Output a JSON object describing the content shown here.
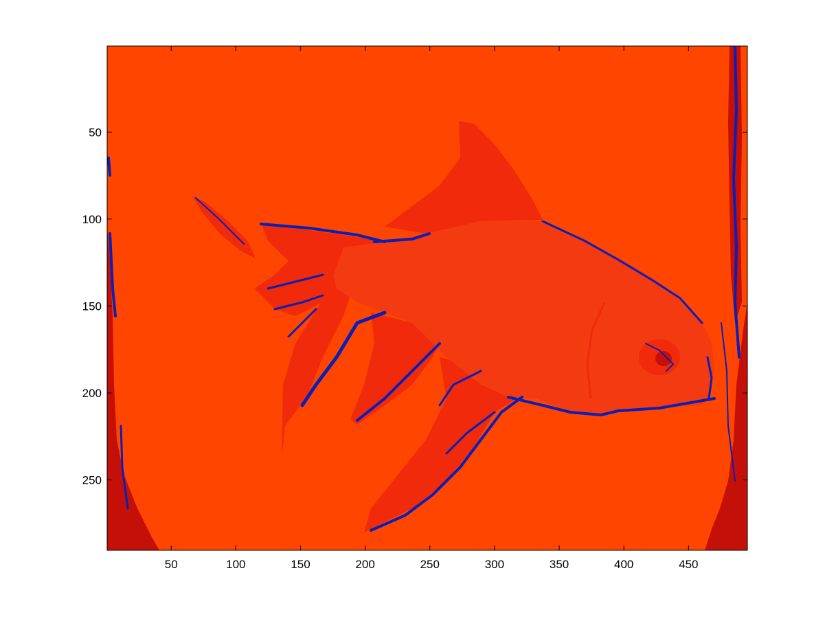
{
  "chart_data": {
    "type": "heatmap",
    "title": "",
    "xlabel": "",
    "ylabel": "",
    "image_width": 495,
    "image_height": 290,
    "xlim": [
      0.5,
      495.5
    ],
    "ylim": [
      0.5,
      290.5
    ],
    "y_direction": "down",
    "grid": false,
    "legend": "none",
    "xticks": [
      50,
      100,
      150,
      200,
      250,
      300,
      350,
      400,
      450
    ],
    "xtick_labels": [
      "50",
      "100",
      "150",
      "200",
      "250",
      "300",
      "350",
      "400",
      "450"
    ],
    "yticks": [
      50,
      100,
      150,
      200,
      250
    ],
    "ytick_labels": [
      "50",
      "100",
      "150",
      "200",
      "250"
    ],
    "colors": {
      "background": "#FF4500",
      "body": "#F43A10",
      "fin": "#F02A0A",
      "dark": "#C41008",
      "edge": "#0A1FB4"
    },
    "content": "false-colour image of a goldfish"
  }
}
